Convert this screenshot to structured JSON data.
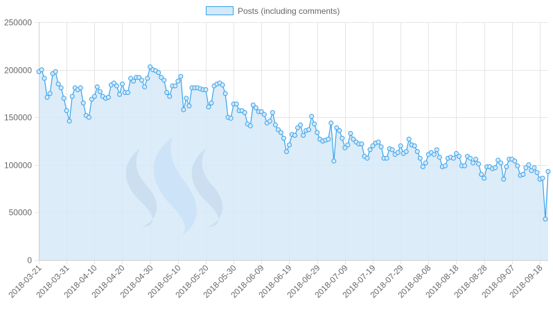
{
  "legend": {
    "label": "Posts (including comments)"
  },
  "colors": {
    "line": "#36a2eb",
    "fill": "#d4e8f8",
    "grid": "#e5e5e5",
    "text": "#666666",
    "logo_light": "#a9cdf4",
    "logo_dark": "#a7b4d1"
  },
  "chart_data": {
    "type": "area",
    "series": [
      {
        "name": "Posts (including comments)",
        "values": [
          198000,
          200000,
          191000,
          171000,
          175000,
          196000,
          198000,
          185000,
          181000,
          170000,
          157000,
          146000,
          172000,
          181000,
          179000,
          181000,
          165000,
          152000,
          150000,
          169000,
          172000,
          182000,
          177000,
          172000,
          170000,
          171000,
          184000,
          186000,
          183000,
          174000,
          185000,
          176000,
          176000,
          191000,
          188000,
          192000,
          192000,
          189000,
          182000,
          191000,
          203000,
          200000,
          199000,
          197000,
          192000,
          189000,
          176000,
          172000,
          183000,
          183000,
          188000,
          193000,
          158000,
          170000,
          162000,
          181000,
          181000,
          181000,
          180000,
          179000,
          179000,
          161000,
          165000,
          183000,
          185000,
          186000,
          184000,
          175000,
          150000,
          149000,
          164000,
          164000,
          157000,
          157000,
          155000,
          143000,
          141000,
          163000,
          160000,
          156000,
          156000,
          153000,
          144000,
          146000,
          155000,
          142000,
          137000,
          134000,
          128000,
          114000,
          121000,
          132000,
          131000,
          139000,
          142000,
          131000,
          136000,
          137000,
          151000,
          143000,
          134000,
          127000,
          125000,
          126000,
          127000,
          144000,
          104000,
          139000,
          136000,
          128000,
          118000,
          121000,
          133000,
          127000,
          124000,
          122000,
          122000,
          109000,
          107000,
          116000,
          120000,
          123000,
          124000,
          119000,
          107000,
          107000,
          117000,
          116000,
          111000,
          113000,
          120000,
          112000,
          114000,
          127000,
          121000,
          120000,
          114000,
          107000,
          98000,
          102000,
          111000,
          113000,
          111000,
          116000,
          108000,
          98000,
          99000,
          107000,
          108000,
          107000,
          112000,
          109000,
          99000,
          99000,
          109000,
          107000,
          102000,
          106000,
          101000,
          90000,
          86000,
          98000,
          98000,
          96000,
          97000,
          105000,
          102000,
          85000,
          98000,
          106000,
          106000,
          104000,
          99000,
          89000,
          90000,
          97000,
          100000,
          94000,
          97000,
          92000,
          85000,
          86000,
          43000,
          93000
        ]
      }
    ],
    "x_tick_labels": [
      "2018-03-21",
      "2018-03-31",
      "2018-04-10",
      "2018-04-20",
      "2018-04-30",
      "2018-05-10",
      "2018-05-20",
      "2018-05-30",
      "2018-06-09",
      "2018-06-19",
      "2018-06-29",
      "2018-07-09",
      "2018-07-19",
      "2018-07-29",
      "2018-08-08",
      "2018-08-18",
      "2018-08-28",
      "2018-09-07",
      "2018-09-18"
    ],
    "y_tick_labels": [
      "0",
      "50000",
      "100000",
      "150000",
      "200000",
      "250000"
    ],
    "ylim": [
      0,
      250000
    ],
    "x_range": [
      "2018-03-21",
      "2018-09-18"
    ],
    "grid": true,
    "legend_position": "top-center"
  }
}
